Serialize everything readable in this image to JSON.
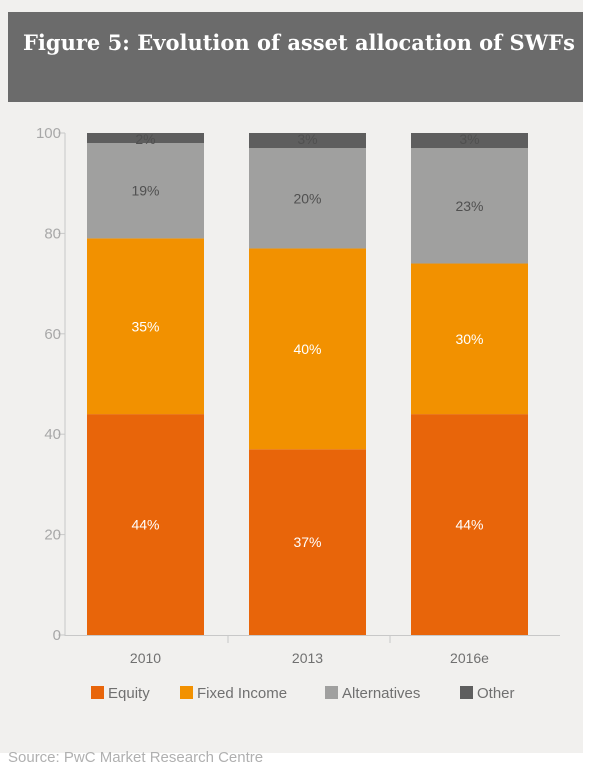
{
  "header": {
    "title": "Figure 5: Evolution of asset allocation of SWFs"
  },
  "source": "Source: PwC Market Research Centre",
  "colors": {
    "Equity": "#e8650a",
    "Fixed Income": "#f29100",
    "Alternatives": "#a0a09f",
    "Other": "#5e5e5e",
    "axis": "#c8c8c8",
    "tick_text": "#a8a8a8",
    "label_dark": "#505050",
    "label_light": "#ffffff"
  },
  "chart_data": {
    "type": "bar",
    "stacked": true,
    "categories": [
      "2010",
      "2013",
      "2016e"
    ],
    "series": [
      {
        "name": "Equity",
        "values": [
          44,
          37,
          44
        ],
        "labels": [
          "44%",
          "37%",
          "44%"
        ]
      },
      {
        "name": "Fixed Income",
        "values": [
          35,
          40,
          30
        ],
        "labels": [
          "35%",
          "40%",
          "30%"
        ]
      },
      {
        "name": "Alternatives",
        "values": [
          19,
          20,
          23
        ],
        "labels": [
          "19%",
          "20%",
          "23%"
        ]
      },
      {
        "name": "Other",
        "values": [
          2,
          3,
          3
        ],
        "labels": [
          "2%",
          "3%",
          "3%"
        ]
      }
    ],
    "ylim": [
      0,
      100
    ],
    "yticks": [
      "0",
      "20",
      "40",
      "60",
      "80",
      "100"
    ],
    "xlabel": "",
    "ylabel": "",
    "legend_position": "bottom",
    "grid": false
  }
}
